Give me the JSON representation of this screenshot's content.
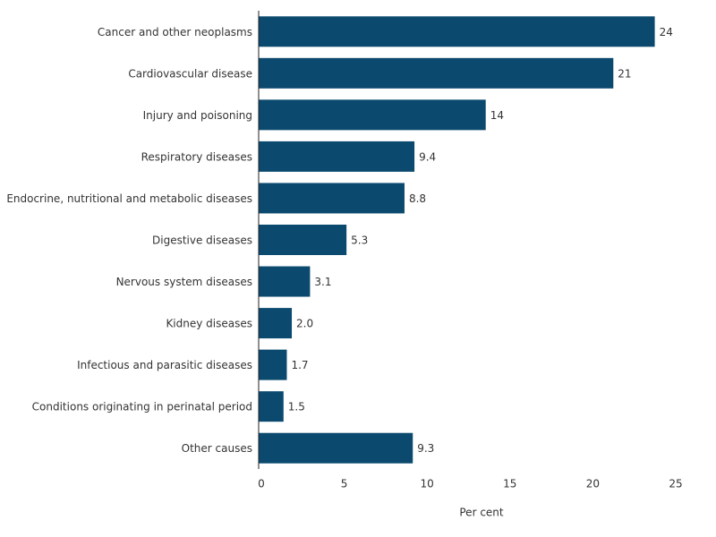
{
  "chart_data": {
    "type": "hbar",
    "categories": [
      "Cancer and other neoplasms",
      "Cardiovascular disease",
      "Injury and poisoning",
      "Respiratory diseases",
      "Endocrine, nutritional and metabolic diseases",
      "Digestive diseases",
      "Nervous system diseases",
      "Kidney diseases",
      "Infectious and parasitic diseases",
      "Conditions originating in perinatal period",
      "Other causes"
    ],
    "values": [
      23.9,
      21.4,
      13.7,
      9.4,
      8.8,
      5.3,
      3.1,
      2.0,
      1.7,
      1.5,
      9.3
    ],
    "value_labels": [
      "24",
      "21",
      "14",
      "9.4",
      "8.8",
      "5.3",
      "3.1",
      "2.0",
      "1.7",
      "1.5",
      "9.3"
    ],
    "color": "#0b4a6e",
    "xlabel": "Per cent",
    "xlim": [
      0,
      27
    ],
    "xticks": [
      0,
      5,
      10,
      15,
      20,
      25
    ]
  }
}
